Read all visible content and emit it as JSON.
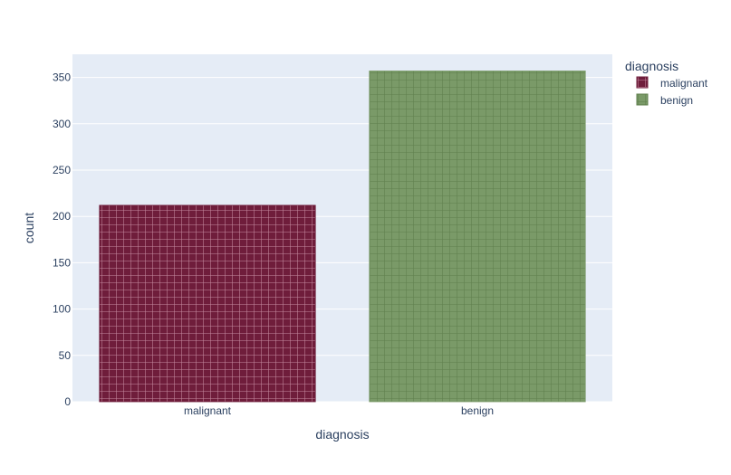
{
  "chart_data": {
    "type": "bar",
    "categories": [
      "malignant",
      "benign"
    ],
    "values": [
      212,
      357
    ],
    "series": [
      {
        "name": "malignant",
        "values": [
          212,
          null
        ],
        "color": "#6f1d3b",
        "pattern_color": "#c58aa0"
      },
      {
        "name": "benign",
        "values": [
          null,
          357
        ],
        "color": "#7a9a68",
        "pattern_color": "#5f7f4d"
      }
    ],
    "title": "",
    "xlabel": "diagnosis",
    "ylabel": "count",
    "ylim": [
      0,
      375
    ],
    "yticks": [
      0,
      50,
      100,
      150,
      200,
      250,
      300,
      350
    ],
    "grid": true,
    "background_color": "#e5ecf6",
    "legend": {
      "title": "diagnosis",
      "entries": [
        "malignant",
        "benign"
      ],
      "placement": "top-right"
    }
  }
}
